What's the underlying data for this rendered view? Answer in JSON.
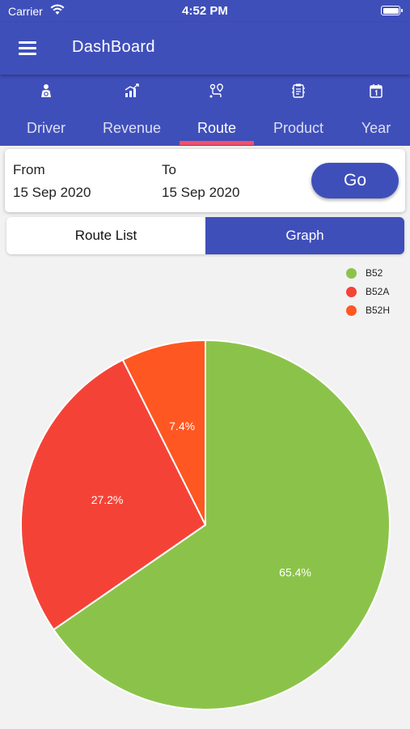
{
  "status_bar": {
    "carrier": "Carrier",
    "time": "4:52 PM"
  },
  "app_bar": {
    "title": "DashBoard"
  },
  "tabs": [
    {
      "label": "Driver",
      "icon": "driver-icon"
    },
    {
      "label": "Revenue",
      "icon": "revenue-chart-icon"
    },
    {
      "label": "Route",
      "icon": "route-icon",
      "active": true
    },
    {
      "label": "Product",
      "icon": "product-icon"
    },
    {
      "label": "Year",
      "icon": "calendar-icon"
    }
  ],
  "date_filter": {
    "from_label": "From",
    "from_value": "15 Sep 2020",
    "to_label": "To",
    "to_value": "15 Sep 2020",
    "go_label": "Go"
  },
  "view_toggle": {
    "list_label": "Route List",
    "graph_label": "Graph",
    "selected": "Graph"
  },
  "colors": {
    "primary": "#3f4fba",
    "accent": "#f2506a"
  },
  "chart_data": {
    "type": "pie",
    "legend_position": "top-right",
    "slices": [
      {
        "name": "B52",
        "value": 65.4,
        "label": "65.4%",
        "color": "#8bc34a"
      },
      {
        "name": "B52A",
        "value": 27.2,
        "label": "27.2%",
        "color": "#f44336"
      },
      {
        "name": "B52H",
        "value": 7.4,
        "label": "7.4%",
        "color": "#ff5722"
      }
    ]
  }
}
